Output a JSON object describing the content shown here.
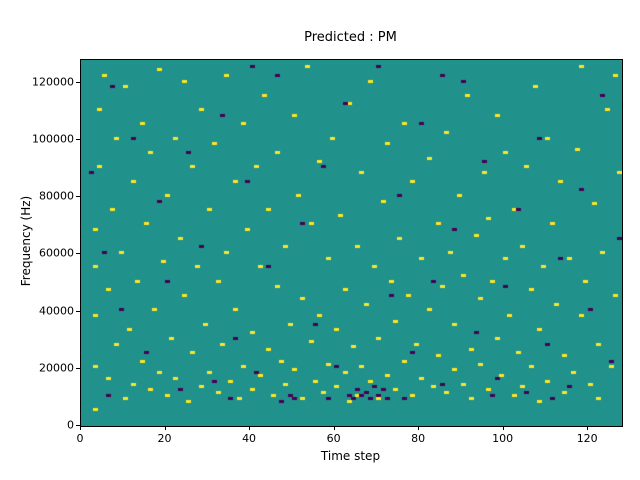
{
  "figure": {
    "title": "Predicted : PM",
    "xlabel": "Time step",
    "ylabel": "Frequency (Hz)"
  },
  "chart_data": {
    "type": "heatmap",
    "title": "Predicted : PM",
    "xlabel": "Time step",
    "ylabel": "Frequency (Hz)",
    "xlim": [
      0,
      128
    ],
    "ylim": [
      0,
      128000
    ],
    "xticks": [
      0,
      20,
      40,
      60,
      80,
      100,
      120
    ],
    "yticks": [
      0,
      20000,
      40000,
      60000,
      80000,
      100000,
      120000
    ],
    "grid": {
      "cols": 128,
      "rows": 128,
      "hz_per_row": 1000
    },
    "value_colors": {
      "background": "#21918c",
      "positive": "#fde725",
      "negative": "#440154"
    },
    "legend": "none",
    "cells_note": "sparse cells as [time_step, frequency_bin]; positive=yellow, negative=purple; all other cells are background value 0",
    "yellow_cells": [
      [
        3,
        5
      ],
      [
        3,
        20
      ],
      [
        3,
        38
      ],
      [
        3,
        55
      ],
      [
        3,
        68
      ],
      [
        4,
        90
      ],
      [
        4,
        110
      ],
      [
        5,
        122
      ],
      [
        6,
        47
      ],
      [
        6,
        16
      ],
      [
        7,
        75
      ],
      [
        8,
        100
      ],
      [
        8,
        28
      ],
      [
        9,
        60
      ],
      [
        10,
        118
      ],
      [
        10,
        9
      ],
      [
        11,
        33
      ],
      [
        12,
        85
      ],
      [
        12,
        14
      ],
      [
        13,
        50
      ],
      [
        14,
        105
      ],
      [
        14,
        22
      ],
      [
        15,
        70
      ],
      [
        16,
        12
      ],
      [
        16,
        95
      ],
      [
        17,
        40
      ],
      [
        18,
        124
      ],
      [
        18,
        18
      ],
      [
        19,
        57
      ],
      [
        20,
        80
      ],
      [
        20,
        10
      ],
      [
        21,
        30
      ],
      [
        22,
        100
      ],
      [
        22,
        16
      ],
      [
        23,
        65
      ],
      [
        24,
        45
      ],
      [
        24,
        120
      ],
      [
        25,
        8
      ],
      [
        26,
        90
      ],
      [
        26,
        25
      ],
      [
        27,
        55
      ],
      [
        28,
        13
      ],
      [
        28,
        110
      ],
      [
        29,
        35
      ],
      [
        30,
        75
      ],
      [
        30,
        18
      ],
      [
        31,
        98
      ],
      [
        32,
        50
      ],
      [
        32,
        11
      ],
      [
        33,
        28
      ],
      [
        34,
        122
      ],
      [
        34,
        60
      ],
      [
        35,
        15
      ],
      [
        36,
        85
      ],
      [
        36,
        40
      ],
      [
        37,
        9
      ],
      [
        38,
        105
      ],
      [
        38,
        20
      ],
      [
        39,
        68
      ],
      [
        40,
        32
      ],
      [
        40,
        12
      ],
      [
        41,
        90
      ],
      [
        42,
        55
      ],
      [
        42,
        17
      ],
      [
        43,
        115
      ],
      [
        44,
        26
      ],
      [
        44,
        75
      ],
      [
        45,
        10
      ],
      [
        46,
        48
      ],
      [
        46,
        95
      ],
      [
        47,
        22
      ],
      [
        48,
        62
      ],
      [
        48,
        14
      ],
      [
        49,
        35
      ],
      [
        50,
        108
      ],
      [
        50,
        19
      ],
      [
        51,
        80
      ],
      [
        52,
        44
      ],
      [
        52,
        9
      ],
      [
        53,
        125
      ],
      [
        54,
        29
      ],
      [
        54,
        70
      ],
      [
        55,
        15
      ],
      [
        56,
        92
      ],
      [
        56,
        38
      ],
      [
        57,
        11
      ],
      [
        58,
        58
      ],
      [
        58,
        21
      ],
      [
        59,
        100
      ],
      [
        60,
        33
      ],
      [
        60,
        13
      ],
      [
        61,
        73
      ],
      [
        62,
        47
      ],
      [
        62,
        18
      ],
      [
        63,
        112
      ],
      [
        63,
        8
      ],
      [
        64,
        27
      ],
      [
        65,
        62
      ],
      [
        65,
        10
      ],
      [
        66,
        88
      ],
      [
        66,
        20
      ],
      [
        67,
        42
      ],
      [
        68,
        15
      ],
      [
        68,
        120
      ],
      [
        69,
        55
      ],
      [
        70,
        30
      ],
      [
        70,
        9
      ],
      [
        71,
        78
      ],
      [
        72,
        17
      ],
      [
        72,
        98
      ],
      [
        73,
        50
      ],
      [
        74,
        12
      ],
      [
        74,
        36
      ],
      [
        75,
        65
      ],
      [
        76,
        22
      ],
      [
        76,
        105
      ],
      [
        77,
        45
      ],
      [
        78,
        10
      ],
      [
        78,
        85
      ],
      [
        79,
        28
      ],
      [
        80,
        58
      ],
      [
        80,
        16
      ],
      [
        82,
        93
      ],
      [
        82,
        40
      ],
      [
        83,
        13
      ],
      [
        84,
        70
      ],
      [
        84,
        24
      ],
      [
        85,
        48
      ],
      [
        86,
        11
      ],
      [
        86,
        102
      ],
      [
        87,
        60
      ],
      [
        88,
        35
      ],
      [
        88,
        19
      ],
      [
        89,
        80
      ],
      [
        90,
        14
      ],
      [
        90,
        52
      ],
      [
        91,
        115
      ],
      [
        92,
        26
      ],
      [
        92,
        9
      ],
      [
        93,
        66
      ],
      [
        94,
        44
      ],
      [
        94,
        21
      ],
      [
        95,
        88
      ],
      [
        96,
        12
      ],
      [
        96,
        72
      ],
      [
        97,
        50
      ],
      [
        98,
        30
      ],
      [
        98,
        108
      ],
      [
        99,
        17
      ],
      [
        100,
        95
      ],
      [
        100,
        58
      ],
      [
        101,
        38
      ],
      [
        102,
        10
      ],
      [
        102,
        75
      ],
      [
        103,
        25
      ],
      [
        104,
        62
      ],
      [
        104,
        13
      ],
      [
        105,
        90
      ],
      [
        106,
        47
      ],
      [
        106,
        20
      ],
      [
        107,
        118
      ],
      [
        108,
        33
      ],
      [
        108,
        8
      ],
      [
        109,
        55
      ],
      [
        110,
        100
      ],
      [
        110,
        15
      ],
      [
        111,
        70
      ],
      [
        112,
        42
      ],
      [
        113,
        85
      ],
      [
        114,
        24
      ],
      [
        114,
        11
      ],
      [
        115,
        58
      ],
      [
        116,
        18
      ],
      [
        117,
        96
      ],
      [
        118,
        38
      ],
      [
        118,
        125
      ],
      [
        119,
        50
      ],
      [
        120,
        14
      ],
      [
        121,
        77
      ],
      [
        122,
        28
      ],
      [
        122,
        9
      ],
      [
        123,
        60
      ],
      [
        124,
        110
      ],
      [
        125,
        20
      ],
      [
        126,
        45
      ],
      [
        126,
        122
      ],
      [
        127,
        88
      ]
    ],
    "purple_cells": [
      [
        5,
        60
      ],
      [
        7,
        118
      ],
      [
        9,
        40
      ],
      [
        12,
        100
      ],
      [
        15,
        25
      ],
      [
        18,
        78
      ],
      [
        20,
        50
      ],
      [
        23,
        12
      ],
      [
        25,
        95
      ],
      [
        28,
        62
      ],
      [
        31,
        15
      ],
      [
        33,
        108
      ],
      [
        36,
        30
      ],
      [
        39,
        85
      ],
      [
        41,
        18
      ],
      [
        44,
        55
      ],
      [
        46,
        122
      ],
      [
        49,
        10
      ],
      [
        52,
        70
      ],
      [
        55,
        35
      ],
      [
        57,
        90
      ],
      [
        60,
        20
      ],
      [
        62,
        112
      ],
      [
        63,
        10
      ],
      [
        64,
        9
      ],
      [
        65,
        12
      ],
      [
        66,
        10
      ],
      [
        67,
        11
      ],
      [
        68,
        9
      ],
      [
        69,
        13
      ],
      [
        70,
        10
      ],
      [
        71,
        12
      ],
      [
        72,
        9
      ],
      [
        73,
        45
      ],
      [
        75,
        80
      ],
      [
        78,
        25
      ],
      [
        80,
        105
      ],
      [
        83,
        50
      ],
      [
        85,
        14
      ],
      [
        88,
        68
      ],
      [
        90,
        120
      ],
      [
        93,
        32
      ],
      [
        95,
        92
      ],
      [
        98,
        16
      ],
      [
        100,
        48
      ],
      [
        103,
        75
      ],
      [
        105,
        11
      ],
      [
        108,
        100
      ],
      [
        110,
        28
      ],
      [
        113,
        58
      ],
      [
        115,
        13
      ],
      [
        118,
        82
      ],
      [
        120,
        40
      ],
      [
        123,
        115
      ],
      [
        125,
        22
      ],
      [
        127,
        65
      ],
      [
        2,
        88
      ],
      [
        6,
        10
      ],
      [
        35,
        9
      ],
      [
        47,
        8
      ],
      [
        58,
        9
      ],
      [
        76,
        9
      ],
      [
        97,
        10
      ],
      [
        40,
        125
      ],
      [
        70,
        125
      ],
      [
        85,
        122
      ],
      [
        111,
        9
      ],
      [
        50,
        9
      ]
    ]
  }
}
